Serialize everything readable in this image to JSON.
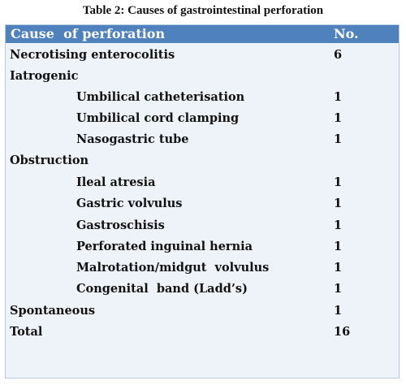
{
  "caption": "Table 2: Causes of gastrointestinal perforation",
  "table": {
    "header": {
      "cause": "Cause  of perforation",
      "no": "No."
    },
    "rows": [
      {
        "cause": "Necrotising enterocolitis",
        "no": "6",
        "indent": false
      },
      {
        "cause": "Iatrogenic",
        "no": "",
        "indent": false
      },
      {
        "cause": "Umbilical catheterisation",
        "no": "1",
        "indent": true
      },
      {
        "cause": "Umbilical cord clamping",
        "no": "1",
        "indent": true
      },
      {
        "cause": "Nasogastric tube",
        "no": "1",
        "indent": true
      },
      {
        "cause": "Obstruction",
        "no": "",
        "indent": false
      },
      {
        "cause": "Ileal atresia",
        "no": "1",
        "indent": true
      },
      {
        "cause": "Gastric volvulus",
        "no": "1",
        "indent": true
      },
      {
        "cause": "Gastroschisis",
        "no": "1",
        "indent": true
      },
      {
        "cause": "Perforated inguinal hernia",
        "no": "1",
        "indent": true
      },
      {
        "cause": "Malrotation/midgut  volvulus",
        "no": "1",
        "indent": true
      },
      {
        "cause": "Congenital  band (Ladd’s)",
        "no": "1",
        "indent": true
      },
      {
        "cause": "Spontaneous",
        "no": "1",
        "indent": false
      },
      {
        "cause": "Total",
        "no": "16",
        "indent": false
      }
    ]
  },
  "colors": {
    "header_bg": "#4f81bd",
    "table_bg": "#eef3fa"
  }
}
